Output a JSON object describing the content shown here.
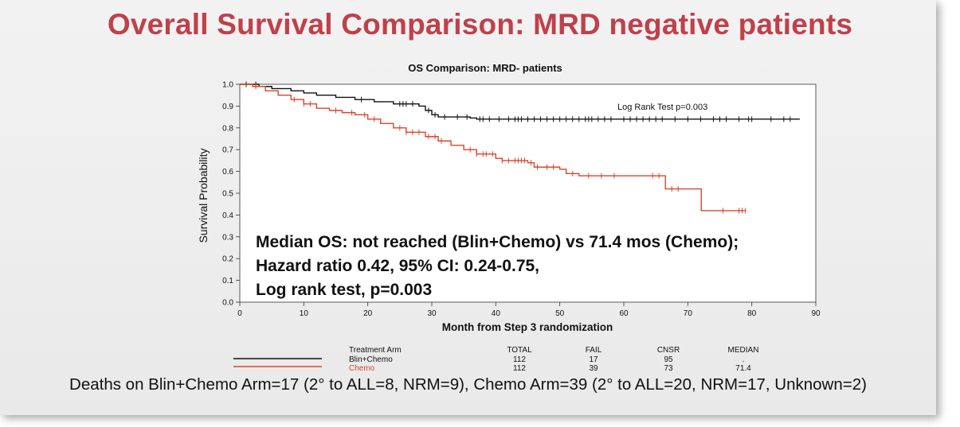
{
  "slide_title": "Overall Survival Comparison:  MRD negative patients",
  "footnote": "Deaths on Blin+Chemo Arm=17 (2° to ALL=8, NRM=9), Chemo Arm=39 (2° to ALL=20, NRM=17, Unknown=2)",
  "colors": {
    "title": "#c0404a",
    "blin": "#111111",
    "chemo": "#d9462a"
  },
  "chart_data": {
    "type": "line",
    "title": "OS Comparison: MRD- patients",
    "xlabel": "Month from Step 3 randomization",
    "ylabel": "Survival Probability",
    "xlim": [
      0,
      90
    ],
    "ylim": [
      0,
      1
    ],
    "x_ticks": [
      "0",
      "10",
      "20",
      "30",
      "40",
      "50",
      "60",
      "70",
      "80",
      "90"
    ],
    "y_ticks": [
      "0.0",
      "0.1",
      "0.2",
      "0.3",
      "0.4",
      "0.5",
      "0.6",
      "0.7",
      "0.8",
      "0.9",
      "1.0"
    ],
    "annotation": "Log Rank Test p=0.003",
    "stats_text": [
      "Median OS: not reached (Blin+Chemo) vs 71.4 mos (Chemo);",
      "Hazard ratio 0.42, 95% CI: 0.24-0.75,",
      "Log rank test, p=0.003"
    ],
    "series": [
      {
        "name": "Blin+Chemo",
        "color": "#111111",
        "points": [
          [
            0,
            1.0
          ],
          [
            3,
            0.99
          ],
          [
            5,
            0.98
          ],
          [
            8,
            0.97
          ],
          [
            10,
            0.96
          ],
          [
            12,
            0.95
          ],
          [
            15,
            0.94
          ],
          [
            18,
            0.93
          ],
          [
            21,
            0.92
          ],
          [
            24,
            0.91
          ],
          [
            28,
            0.9
          ],
          [
            29,
            0.88
          ],
          [
            30,
            0.86
          ],
          [
            31,
            0.85
          ],
          [
            36,
            0.845
          ],
          [
            37,
            0.84
          ],
          [
            87.5,
            0.84
          ]
        ],
        "censors": [
          1,
          2.5,
          19,
          25,
          25.5,
          26,
          27,
          29.5,
          30.5,
          32,
          34,
          35.5,
          37.5,
          38,
          39,
          40.5,
          42,
          43,
          43.5,
          44,
          45,
          46,
          47,
          48,
          49,
          50,
          51,
          52,
          53,
          54,
          54.5,
          55,
          56,
          57,
          58,
          60,
          61,
          62,
          63,
          64,
          65,
          66,
          68,
          70,
          72,
          74,
          75,
          76,
          78,
          79.5,
          80,
          83,
          85,
          86
        ]
      },
      {
        "name": "Chemo",
        "color": "#d9462a",
        "points": [
          [
            0,
            1.0
          ],
          [
            2,
            0.99
          ],
          [
            4,
            0.97
          ],
          [
            6,
            0.95
          ],
          [
            8,
            0.93
          ],
          [
            10,
            0.91
          ],
          [
            12,
            0.89
          ],
          [
            14,
            0.88
          ],
          [
            16,
            0.87
          ],
          [
            18,
            0.86
          ],
          [
            20,
            0.84
          ],
          [
            22,
            0.82
          ],
          [
            24,
            0.8
          ],
          [
            26,
            0.78
          ],
          [
            29,
            0.76
          ],
          [
            31,
            0.74
          ],
          [
            33,
            0.72
          ],
          [
            35,
            0.7
          ],
          [
            37,
            0.68
          ],
          [
            40,
            0.66
          ],
          [
            41,
            0.65
          ],
          [
            45,
            0.64
          ],
          [
            46,
            0.62
          ],
          [
            50,
            0.61
          ],
          [
            51,
            0.59
          ],
          [
            53,
            0.58
          ],
          [
            66,
            0.58
          ],
          [
            66.5,
            0.52
          ],
          [
            72,
            0.52
          ],
          [
            72.1,
            0.42
          ],
          [
            79,
            0.42
          ]
        ],
        "censors": [
          2.5,
          8.5,
          10,
          11,
          15,
          17.5,
          19.5,
          21,
          25,
          26,
          27,
          28,
          29.5,
          30.5,
          31.5,
          36,
          37,
          38,
          38.5,
          39.5,
          41,
          42,
          43,
          43.5,
          44,
          44.5,
          45.5,
          46.5,
          48,
          49,
          52,
          54.5,
          56.5,
          58.5,
          64.5,
          65.5,
          67.5,
          68.5,
          75.5,
          78,
          78.5,
          79
        ]
      }
    ],
    "risk_table": {
      "headers": [
        "Treatment Arm",
        "TOTAL",
        "FAIL",
        "CNSR",
        "MEDIAN"
      ],
      "rows": [
        {
          "arm": "Blin+Chemo",
          "total": "112",
          "fail": "17",
          "cnsr": "95",
          "median": "."
        },
        {
          "arm": "Chemo",
          "total": "112",
          "fail": "39",
          "cnsr": "73",
          "median": "71.4"
        }
      ]
    }
  }
}
